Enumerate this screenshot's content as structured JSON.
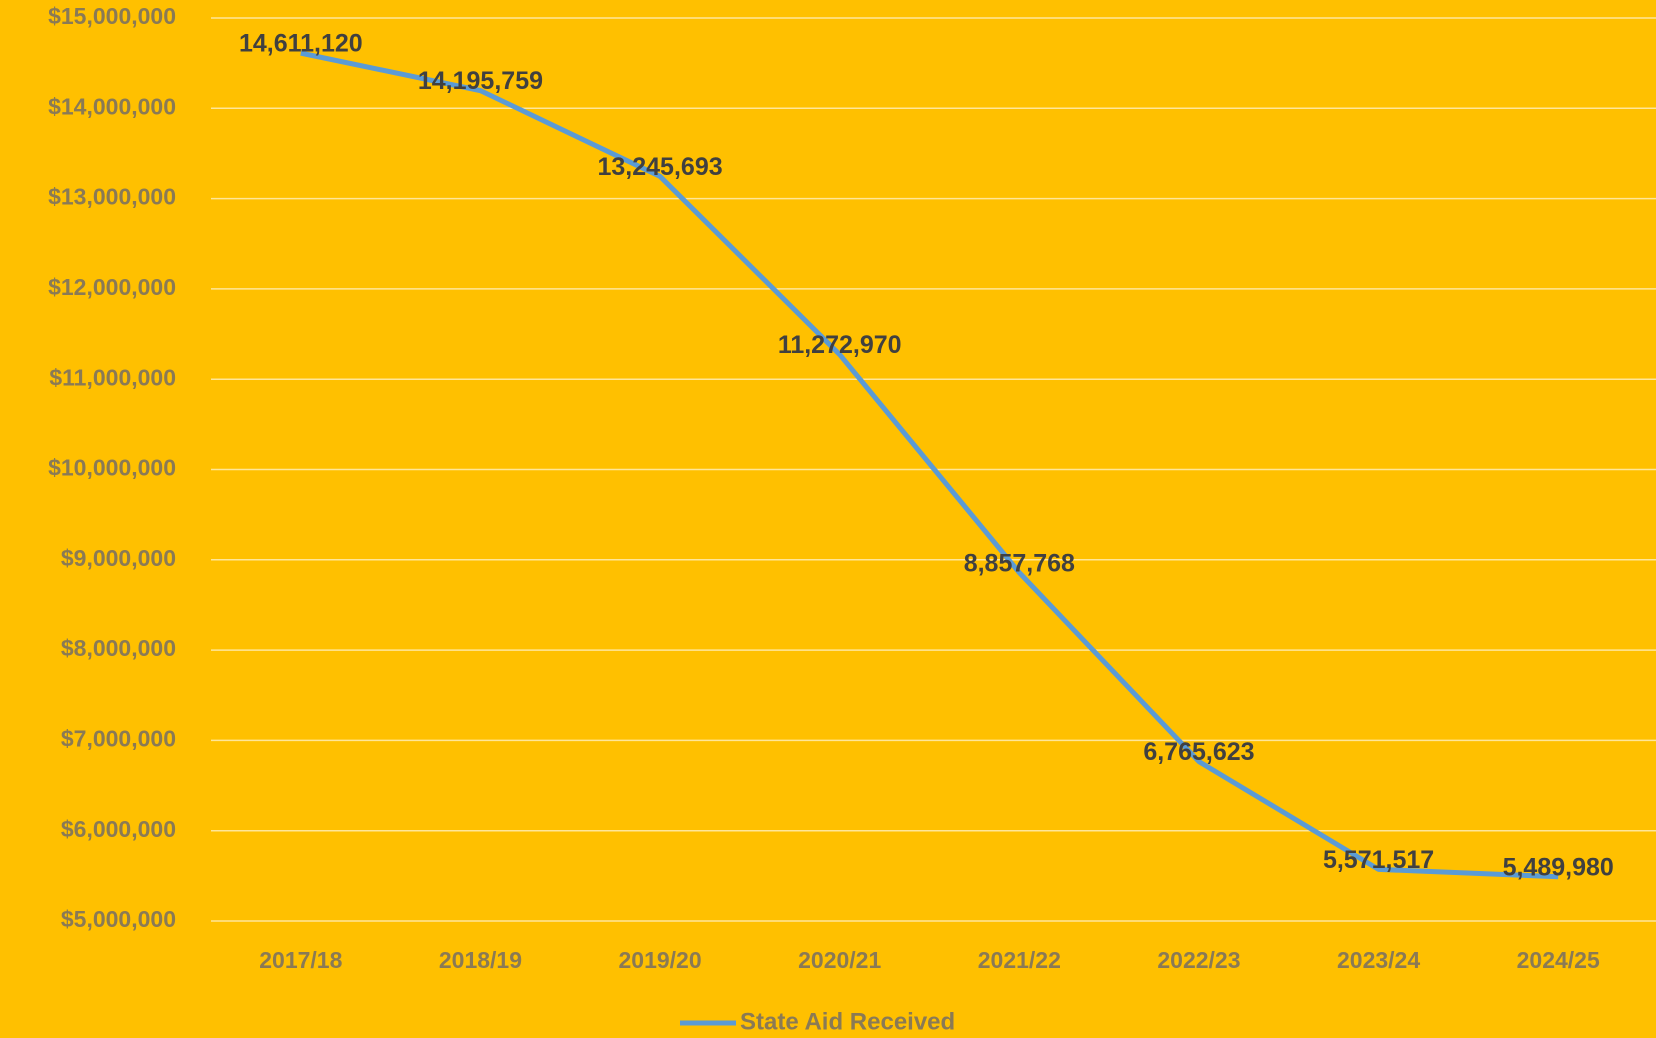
{
  "chart_data": {
    "type": "line",
    "categories": [
      "2017/18",
      "2018/19",
      "2019/20",
      "2020/21",
      "2021/22",
      "2022/23",
      "2023/24",
      "2024/25"
    ],
    "series": [
      {
        "name": "State Aid Received",
        "color": "#5b9bd5",
        "values": [
          14611120,
          14195759,
          13245693,
          11272970,
          8857768,
          6765623,
          5571517,
          5489980
        ],
        "value_labels": [
          "14,611,120",
          "14,195,759",
          "13,245,693",
          "11,272,970",
          "8,857,768",
          "6,765,623",
          "5,571,517",
          "5,489,980"
        ]
      }
    ],
    "ylim": [
      5000000,
      15000000
    ],
    "yticks": [
      {
        "value": 5000000,
        "label": "$5,000,000"
      },
      {
        "value": 6000000,
        "label": "$6,000,000"
      },
      {
        "value": 7000000,
        "label": "$7,000,000"
      },
      {
        "value": 8000000,
        "label": "$8,000,000"
      },
      {
        "value": 9000000,
        "label": "$9,000,000"
      },
      {
        "value": 10000000,
        "label": "$10,000,000"
      },
      {
        "value": 11000000,
        "label": "$11,000,000"
      },
      {
        "value": 12000000,
        "label": "$12,000,000"
      },
      {
        "value": 13000000,
        "label": "$13,000,000"
      },
      {
        "value": 14000000,
        "label": "$14,000,000"
      },
      {
        "value": 15000000,
        "label": "$15,000,000"
      }
    ],
    "grid": true,
    "legend": "bottom"
  }
}
